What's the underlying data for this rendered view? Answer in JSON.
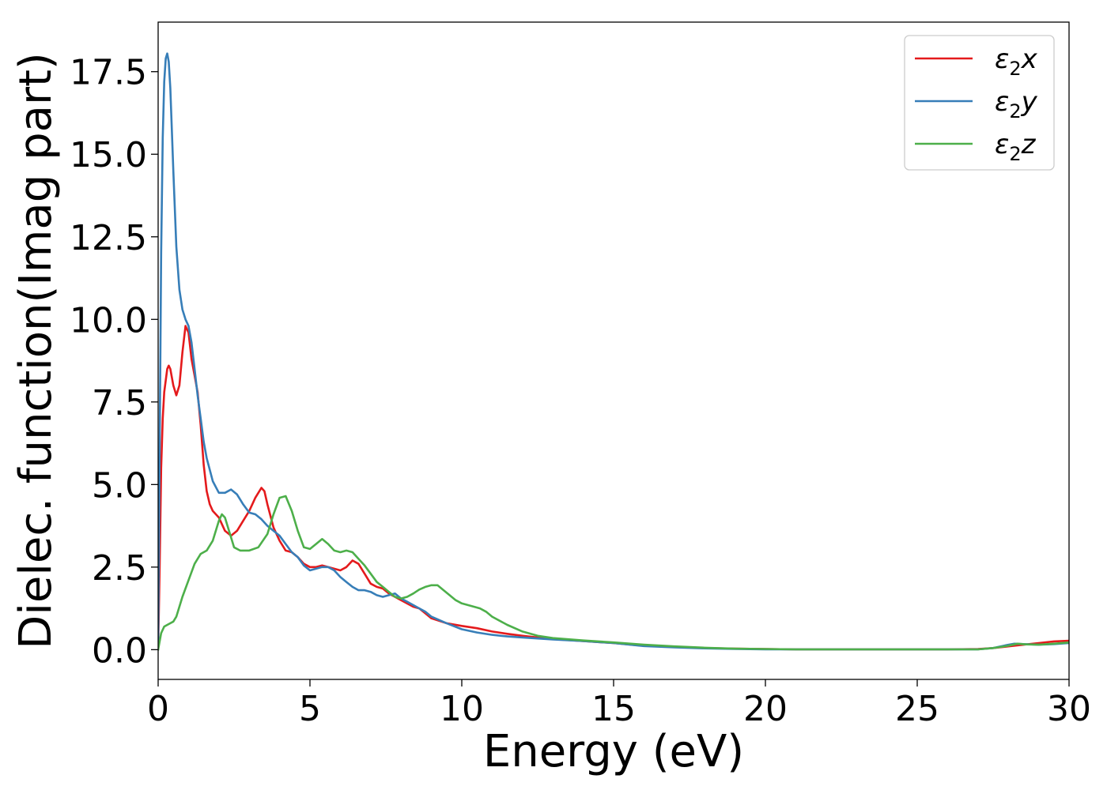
{
  "chart_data": {
    "type": "line",
    "title": "",
    "xlabel": "Energy (eV)",
    "ylabel": "Dielec. function(Imag part)",
    "xlim": [
      0,
      30
    ],
    "ylim": [
      -0.9,
      19.0
    ],
    "xticks": [
      0,
      5,
      10,
      15,
      20,
      25,
      30
    ],
    "xtick_labels": [
      "0",
      "5",
      "10",
      "15",
      "20",
      "25",
      "30"
    ],
    "yticks": [
      0.0,
      2.5,
      5.0,
      7.5,
      10.0,
      12.5,
      15.0,
      17.5
    ],
    "ytick_labels": [
      "0.0",
      "2.5",
      "5.0",
      "7.5",
      "10.0",
      "12.5",
      "15.0",
      "17.5"
    ],
    "grid": false,
    "legend_position": "top-right",
    "series": [
      {
        "name": "ε₂x",
        "legend_main": "ε",
        "legend_sub": "2",
        "legend_suffix": "x",
        "color": "#e41a1c",
        "x": [
          0,
          0.05,
          0.1,
          0.15,
          0.2,
          0.3,
          0.35,
          0.4,
          0.5,
          0.6,
          0.7,
          0.8,
          0.9,
          1.0,
          1.1,
          1.2,
          1.3,
          1.4,
          1.5,
          1.6,
          1.7,
          1.8,
          2.0,
          2.2,
          2.4,
          2.6,
          2.8,
          3.0,
          3.2,
          3.4,
          3.5,
          3.6,
          3.8,
          4.0,
          4.2,
          4.4,
          4.6,
          4.8,
          5.0,
          5.2,
          5.4,
          5.6,
          5.8,
          6.0,
          6.2,
          6.4,
          6.6,
          6.8,
          7.0,
          7.2,
          7.4,
          7.6,
          7.8,
          8.0,
          8.2,
          8.4,
          8.6,
          8.8,
          9.0,
          9.5,
          10.0,
          10.5,
          11.0,
          11.5,
          12.0,
          12.5,
          13.0,
          14.0,
          15.0,
          16.0,
          17.0,
          18.0,
          19.0,
          20.0,
          21.0,
          22.0,
          23.0,
          24.0,
          25.0,
          26.0,
          27.0,
          27.5,
          28.0,
          28.5,
          29.0,
          29.5,
          30.0
        ],
        "y": [
          0.0,
          2.5,
          5.5,
          7.0,
          7.8,
          8.5,
          8.6,
          8.5,
          8.0,
          7.7,
          8.0,
          9.0,
          9.8,
          9.6,
          8.8,
          8.3,
          7.8,
          6.8,
          5.6,
          4.8,
          4.4,
          4.2,
          4.0,
          3.6,
          3.45,
          3.6,
          3.9,
          4.2,
          4.6,
          4.9,
          4.8,
          4.4,
          3.7,
          3.3,
          3.0,
          2.95,
          2.8,
          2.6,
          2.5,
          2.5,
          2.55,
          2.5,
          2.45,
          2.4,
          2.5,
          2.7,
          2.6,
          2.3,
          2.0,
          1.9,
          1.85,
          1.7,
          1.6,
          1.5,
          1.4,
          1.3,
          1.25,
          1.1,
          0.95,
          0.8,
          0.72,
          0.65,
          0.55,
          0.48,
          0.42,
          0.37,
          0.32,
          0.26,
          0.2,
          0.12,
          0.08,
          0.05,
          0.03,
          0.02,
          0.01,
          0.01,
          0.01,
          0.01,
          0.01,
          0.01,
          0.02,
          0.05,
          0.1,
          0.15,
          0.2,
          0.25,
          0.27
        ]
      },
      {
        "name": "ε₂y",
        "legend_main": "ε",
        "legend_sub": "2",
        "legend_suffix": "y",
        "color": "#377eb8",
        "x": [
          0,
          0.05,
          0.1,
          0.15,
          0.2,
          0.25,
          0.3,
          0.35,
          0.4,
          0.5,
          0.6,
          0.7,
          0.8,
          0.9,
          1.0,
          1.1,
          1.2,
          1.3,
          1.4,
          1.5,
          1.6,
          1.8,
          2.0,
          2.2,
          2.4,
          2.6,
          2.8,
          3.0,
          3.2,
          3.4,
          3.6,
          3.8,
          4.0,
          4.2,
          4.4,
          4.6,
          4.8,
          5.0,
          5.2,
          5.4,
          5.6,
          5.8,
          6.0,
          6.2,
          6.4,
          6.6,
          6.8,
          7.0,
          7.2,
          7.4,
          7.6,
          7.8,
          8.0,
          8.2,
          8.4,
          8.6,
          8.8,
          9.0,
          9.5,
          10.0,
          10.5,
          11.0,
          11.5,
          12.0,
          12.5,
          13.0,
          14.0,
          15.0,
          16.0,
          17.0,
          18.0,
          19.0,
          20.0,
          21.0,
          22.0,
          23.0,
          24.0,
          25.0,
          26.0,
          27.0,
          27.5,
          28.0,
          28.2,
          28.5,
          29.0,
          29.5,
          30.0
        ],
        "y": [
          0.0,
          6.0,
          12.0,
          15.5,
          17.2,
          17.9,
          18.05,
          17.8,
          17.0,
          14.5,
          12.2,
          10.9,
          10.3,
          10.0,
          9.8,
          9.3,
          8.5,
          7.7,
          7.0,
          6.3,
          5.8,
          5.1,
          4.75,
          4.75,
          4.85,
          4.7,
          4.4,
          4.15,
          4.1,
          3.95,
          3.75,
          3.6,
          3.45,
          3.2,
          2.95,
          2.8,
          2.55,
          2.4,
          2.45,
          2.5,
          2.5,
          2.4,
          2.2,
          2.05,
          1.9,
          1.8,
          1.8,
          1.75,
          1.65,
          1.6,
          1.65,
          1.7,
          1.55,
          1.45,
          1.35,
          1.25,
          1.15,
          1.0,
          0.8,
          0.62,
          0.52,
          0.45,
          0.4,
          0.37,
          0.34,
          0.31,
          0.26,
          0.2,
          0.11,
          0.07,
          0.04,
          0.02,
          0.01,
          0.01,
          0.01,
          0.01,
          0.01,
          0.01,
          0.01,
          0.01,
          0.05,
          0.15,
          0.18,
          0.17,
          0.15,
          0.17,
          0.2
        ]
      },
      {
        "name": "ε₂z",
        "legend_main": "ε",
        "legend_sub": "2",
        "legend_suffix": "z",
        "color": "#4daf4a",
        "x": [
          0,
          0.1,
          0.2,
          0.3,
          0.4,
          0.5,
          0.6,
          0.8,
          1.0,
          1.2,
          1.4,
          1.5,
          1.6,
          1.8,
          2.0,
          2.1,
          2.2,
          2.4,
          2.5,
          2.7,
          3.0,
          3.3,
          3.6,
          3.8,
          4.0,
          4.2,
          4.4,
          4.6,
          4.8,
          5.0,
          5.2,
          5.4,
          5.6,
          5.8,
          6.0,
          6.2,
          6.4,
          6.6,
          6.8,
          7.0,
          7.2,
          7.4,
          7.6,
          7.8,
          8.0,
          8.2,
          8.4,
          8.6,
          8.8,
          9.0,
          9.2,
          9.4,
          9.6,
          9.8,
          10.0,
          10.2,
          10.4,
          10.6,
          10.8,
          11.0,
          11.5,
          12.0,
          12.5,
          13.0,
          14.0,
          15.0,
          16.0,
          17.0,
          18.0,
          19.0,
          20.0,
          21.0,
          22.0,
          23.0,
          24.0,
          25.0,
          26.0,
          27.0,
          27.5,
          28.0,
          28.3,
          28.6,
          29.0,
          29.5,
          30.0
        ],
        "y": [
          0.0,
          0.5,
          0.7,
          0.75,
          0.8,
          0.85,
          1.0,
          1.6,
          2.1,
          2.6,
          2.9,
          2.95,
          3.0,
          3.3,
          3.9,
          4.1,
          4.0,
          3.4,
          3.1,
          3.0,
          3.0,
          3.1,
          3.5,
          4.1,
          4.6,
          4.65,
          4.2,
          3.6,
          3.1,
          3.05,
          3.2,
          3.35,
          3.2,
          3.0,
          2.95,
          3.0,
          2.95,
          2.75,
          2.55,
          2.3,
          2.05,
          1.9,
          1.75,
          1.6,
          1.55,
          1.6,
          1.7,
          1.82,
          1.9,
          1.95,
          1.95,
          1.8,
          1.65,
          1.5,
          1.4,
          1.35,
          1.3,
          1.25,
          1.15,
          1.0,
          0.75,
          0.55,
          0.42,
          0.35,
          0.28,
          0.22,
          0.15,
          0.1,
          0.06,
          0.03,
          0.02,
          0.01,
          0.01,
          0.01,
          0.01,
          0.01,
          0.01,
          0.01,
          0.05,
          0.12,
          0.18,
          0.16,
          0.15,
          0.18,
          0.22
        ]
      }
    ]
  }
}
